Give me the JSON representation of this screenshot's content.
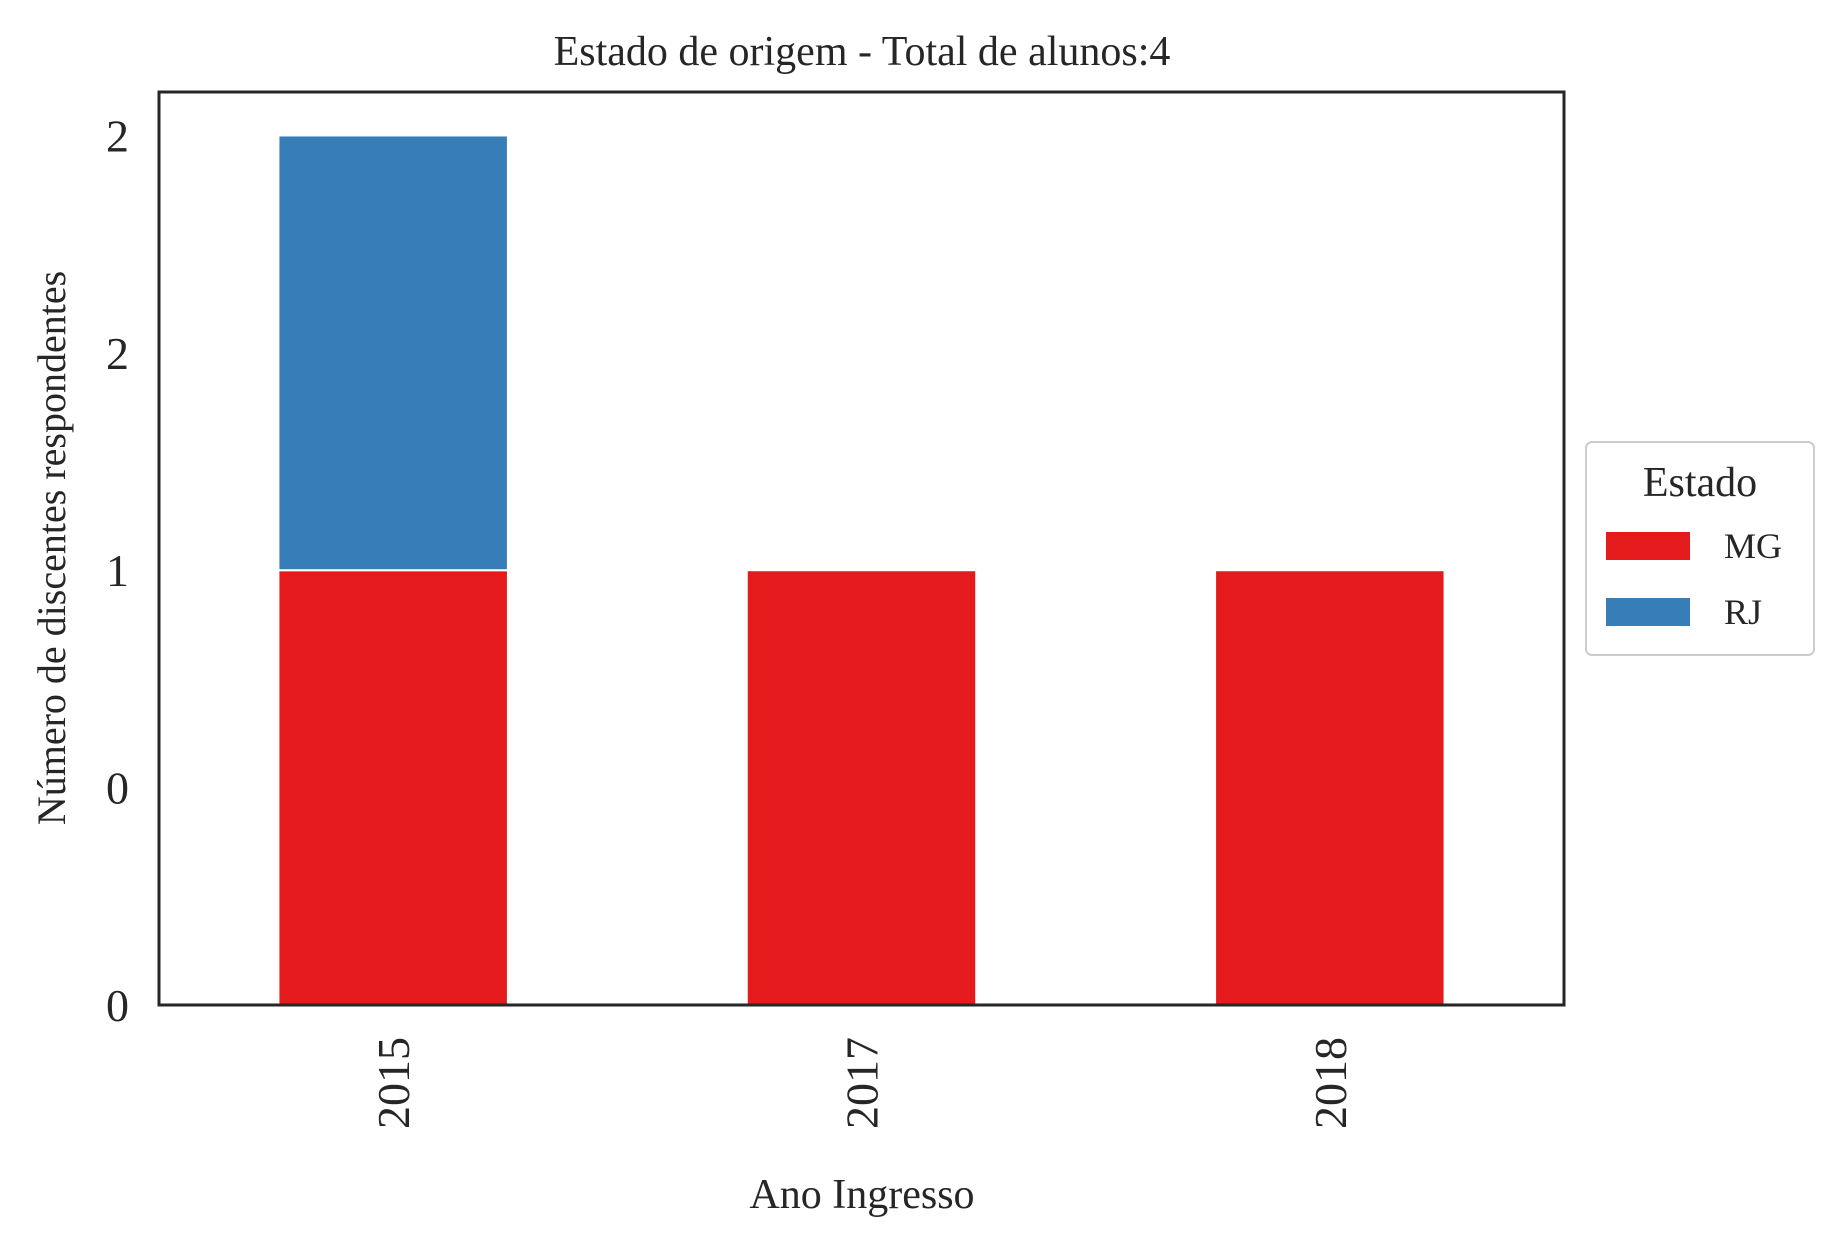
{
  "chart_data": {
    "type": "bar",
    "stacked": true,
    "title": "Estado de origem - Total de alunos:4",
    "xlabel": "Ano Ingresso",
    "ylabel": "Número de discentes respondentes",
    "categories": [
      "2015",
      "2017",
      "2018"
    ],
    "series": [
      {
        "name": "MG",
        "values": [
          1,
          1,
          1
        ],
        "color": "#e41a1c"
      },
      {
        "name": "RJ",
        "values": [
          1,
          0,
          0
        ],
        "color": "#377eb8"
      }
    ],
    "ylim": [
      0,
      2.1
    ],
    "yticks": [
      0,
      0.5,
      1,
      1.5,
      2
    ],
    "ytick_labels": [
      "0",
      "0",
      "1",
      "2",
      "2"
    ],
    "grid": false,
    "legend": {
      "title": "Estado",
      "placement": "right"
    }
  }
}
